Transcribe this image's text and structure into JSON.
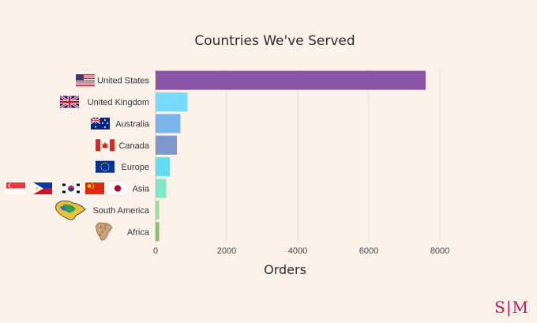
{
  "chart_data": {
    "type": "bar",
    "orientation": "horizontal",
    "title": "Countries We've Served",
    "xlabel": "Orders",
    "ylabel": "",
    "categories": [
      "United States",
      "United Kingdom",
      "Australia",
      "Canada",
      "Europe",
      "Asia",
      "South America",
      "Africa"
    ],
    "values": [
      7600,
      900,
      700,
      600,
      400,
      300,
      100,
      100
    ],
    "bar_colors": [
      "#8a55a5",
      "#77dcfc",
      "#7ab4ea",
      "#7d97cc",
      "#63dcf2",
      "#7ee8c8",
      "#8ee49a",
      "#7cc46a"
    ],
    "xlim": [
      0,
      9000
    ],
    "xticks": [
      0,
      2000,
      4000,
      6000,
      8000
    ],
    "grid": "vertical",
    "flags": [
      [
        "flag-us"
      ],
      [
        "flag-uk"
      ],
      [
        "flag-au"
      ],
      [
        "flag-ca"
      ],
      [
        "flag-eu"
      ],
      [
        "flag-sg",
        "flag-ph",
        "flag-kr",
        "flag-cn",
        "flag-jp"
      ],
      [
        "map-south-america"
      ],
      [
        "map-africa"
      ]
    ]
  },
  "logo": {
    "left": "S",
    "right": "M"
  }
}
